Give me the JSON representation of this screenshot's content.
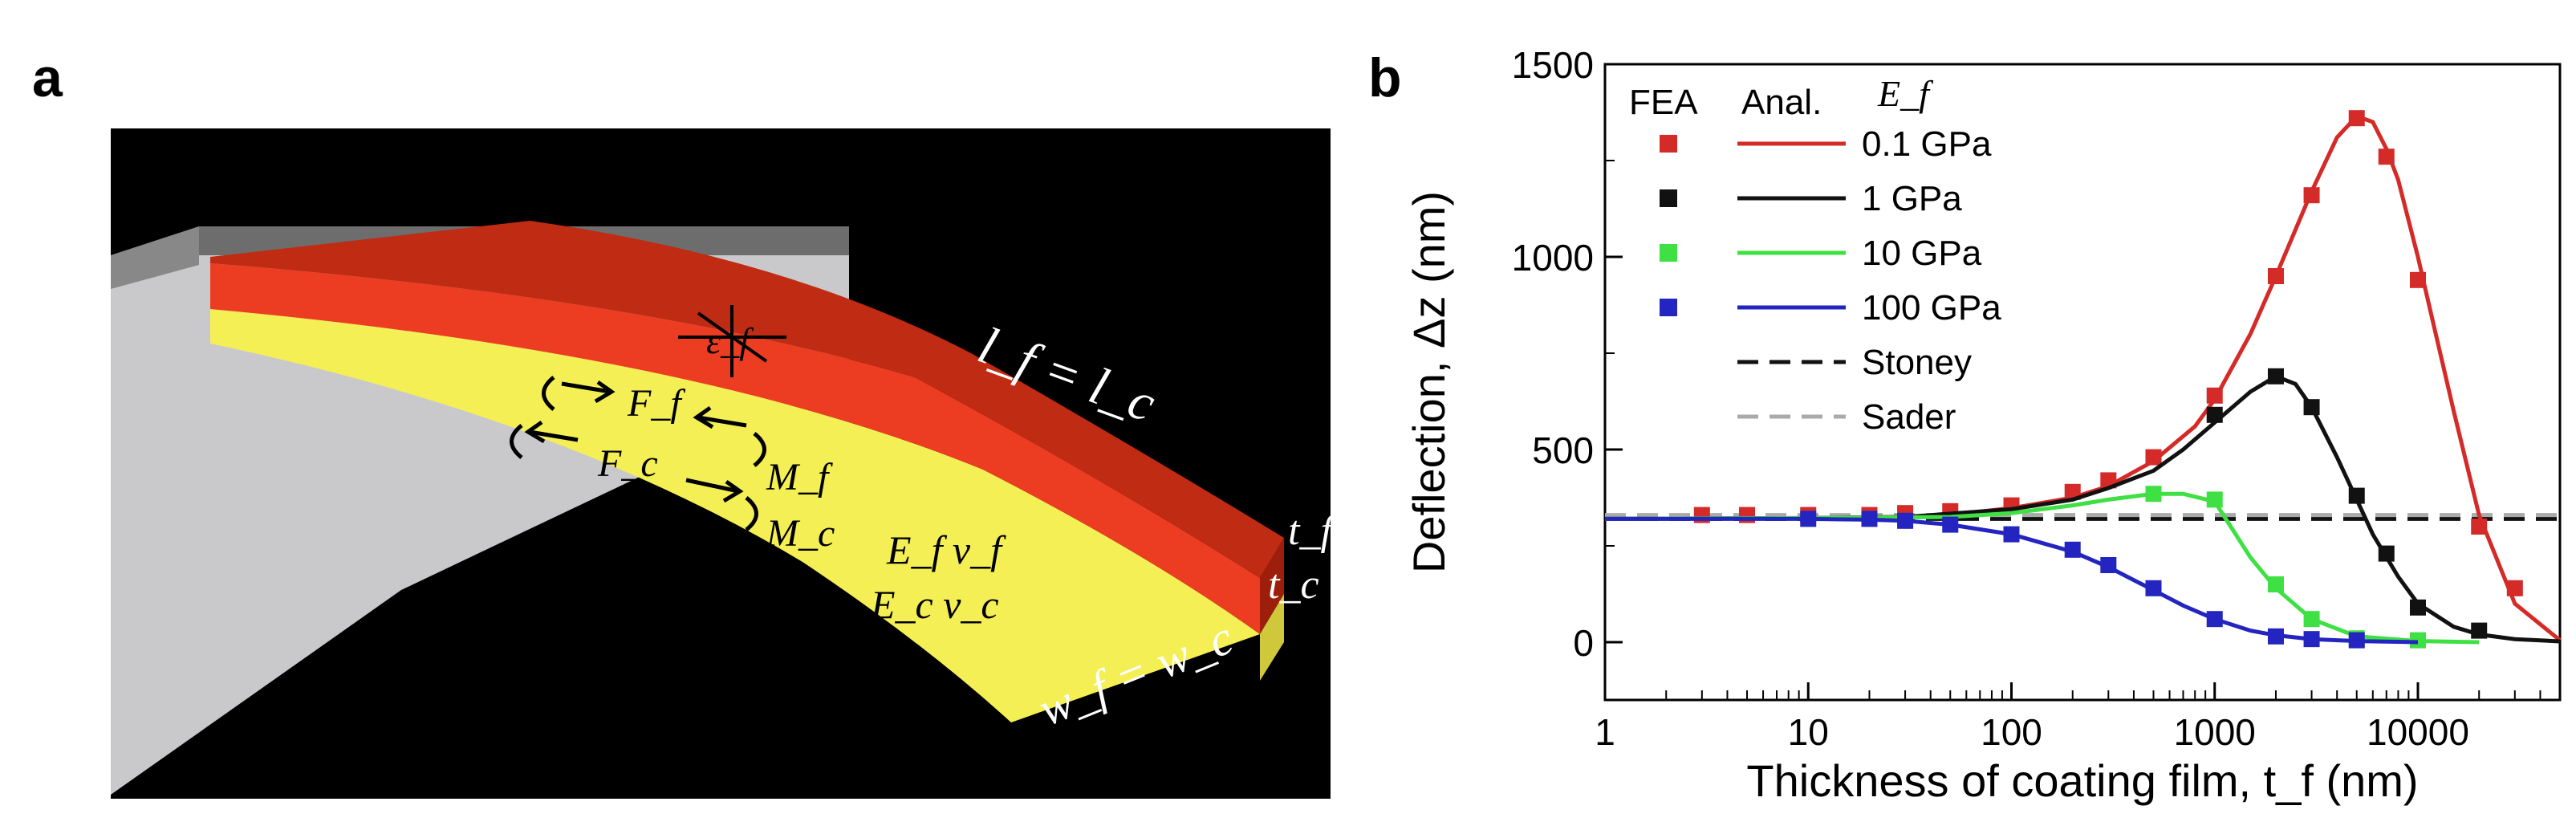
{
  "panel_a": {
    "label": "a",
    "annotations": {
      "length": "l_f = l_c",
      "strain": "ε_f",
      "film_force": "F_f",
      "film_moment": "M_f",
      "cant_force": "F_c",
      "cant_moment": "M_c",
      "film_props": "E_f ν_f",
      "cant_props": "E_c ν_c",
      "t_film": "t_f",
      "t_cant": "t_c",
      "width": "w_f = w_c"
    },
    "colors": {
      "film": "#e8351f",
      "film_top": "#c62d16",
      "cantilever": "#f3ee52",
      "base": "#c8c8c8",
      "background": "#000000"
    }
  },
  "panel_b": {
    "label": "b",
    "legend": {
      "fea_header": "FEA",
      "anal_header": "Anal.",
      "ef_header": "E_f",
      "entries": [
        "0.1 GPa",
        "1 GPa",
        "10 GPa",
        "100 GPa"
      ],
      "line_entries": [
        "Stoney",
        "Sader"
      ]
    }
  },
  "chart_data": {
    "type": "line",
    "title": "",
    "xlabel": "Thickness of coating film, t_f (nm)",
    "ylabel": "Deflection, Δz (nm)",
    "xscale": "log",
    "xlim": [
      1,
      50000
    ],
    "ylim": [
      -150,
      1500
    ],
    "xticks": [
      1,
      10,
      100,
      1000,
      10000
    ],
    "xtick_labels": [
      "1",
      "10",
      "100",
      "1000",
      "10000"
    ],
    "yticks": [
      0,
      500,
      1000,
      1500
    ],
    "ytick_labels": [
      "0",
      "500",
      "1000",
      "1500"
    ],
    "series": [
      {
        "name": "0.1 GPa",
        "color": "#d42a28",
        "fea": {
          "x": [
            3,
            5,
            10,
            20,
            30,
            50,
            100,
            200,
            300,
            500,
            1000,
            2000,
            3000,
            5000,
            7000,
            10000,
            20000,
            30000
          ],
          "y": [
            330,
            330,
            330,
            330,
            335,
            340,
            355,
            390,
            420,
            480,
            640,
            950,
            1160,
            1360,
            1260,
            940,
            300,
            140
          ]
        },
        "anal": {
          "x": [
            1,
            3,
            10,
            30,
            60,
            100,
            200,
            300,
            500,
            800,
            1000,
            1500,
            2000,
            3000,
            4000,
            5000,
            6000,
            7000,
            8000,
            10000,
            12000,
            15000,
            20000,
            30000,
            50000
          ],
          "y": [
            320,
            321,
            322,
            325,
            335,
            348,
            375,
            405,
            470,
            560,
            630,
            800,
            950,
            1170,
            1310,
            1365,
            1350,
            1280,
            1200,
            1000,
            820,
            600,
            330,
            100,
            5
          ]
        }
      },
      {
        "name": "1 GPa",
        "color": "#111111",
        "fea": {
          "x": [
            1000,
            2000,
            3000,
            5000,
            7000,
            10000,
            20000
          ],
          "y": [
            590,
            690,
            610,
            380,
            230,
            90,
            30
          ]
        },
        "anal": {
          "x": [
            1,
            10,
            30,
            100,
            200,
            300,
            500,
            700,
            1000,
            1500,
            2000,
            2500,
            3000,
            4000,
            5000,
            6000,
            8000,
            10000,
            15000,
            20000,
            30000,
            50000
          ],
          "y": [
            320,
            322,
            325,
            345,
            370,
            400,
            445,
            500,
            570,
            650,
            690,
            670,
            610,
            480,
            370,
            280,
            170,
            100,
            40,
            20,
            8,
            2
          ]
        }
      },
      {
        "name": "10 GPa",
        "color": "#3fe043",
        "fea": {
          "x": [
            500,
            1000,
            2000,
            3000,
            5000,
            10000
          ],
          "y": [
            385,
            370,
            150,
            60,
            10,
            5
          ]
        },
        "anal": {
          "x": [
            1,
            10,
            50,
            100,
            200,
            300,
            500,
            700,
            1000,
            1200,
            1500,
            2000,
            3000,
            5000,
            10000,
            20000
          ],
          "y": [
            320,
            322,
            325,
            335,
            355,
            370,
            385,
            385,
            365,
            300,
            220,
            140,
            60,
            15,
            3,
            0
          ]
        }
      },
      {
        "name": "100 GPa",
        "color": "#2424c0",
        "fea": {
          "x": [
            10,
            20,
            30,
            50,
            100,
            200,
            300,
            500,
            1000,
            2000,
            3000,
            5000
          ],
          "y": [
            320,
            320,
            315,
            305,
            280,
            240,
            200,
            140,
            60,
            15,
            8,
            5
          ]
        },
        "anal": {
          "x": [
            1,
            10,
            20,
            30,
            50,
            100,
            200,
            300,
            500,
            700,
            1000,
            1500,
            2000,
            3000,
            5000,
            10000
          ],
          "y": [
            320,
            320,
            318,
            315,
            305,
            280,
            235,
            195,
            135,
            95,
            60,
            30,
            18,
            8,
            3,
            0
          ]
        }
      }
    ],
    "reference_lines": [
      {
        "name": "Stoney",
        "y": 320,
        "color": "#111111",
        "style": "dashed"
      },
      {
        "name": "Sader",
        "y": 330,
        "color": "#aaaaaa",
        "style": "dashed"
      }
    ]
  }
}
